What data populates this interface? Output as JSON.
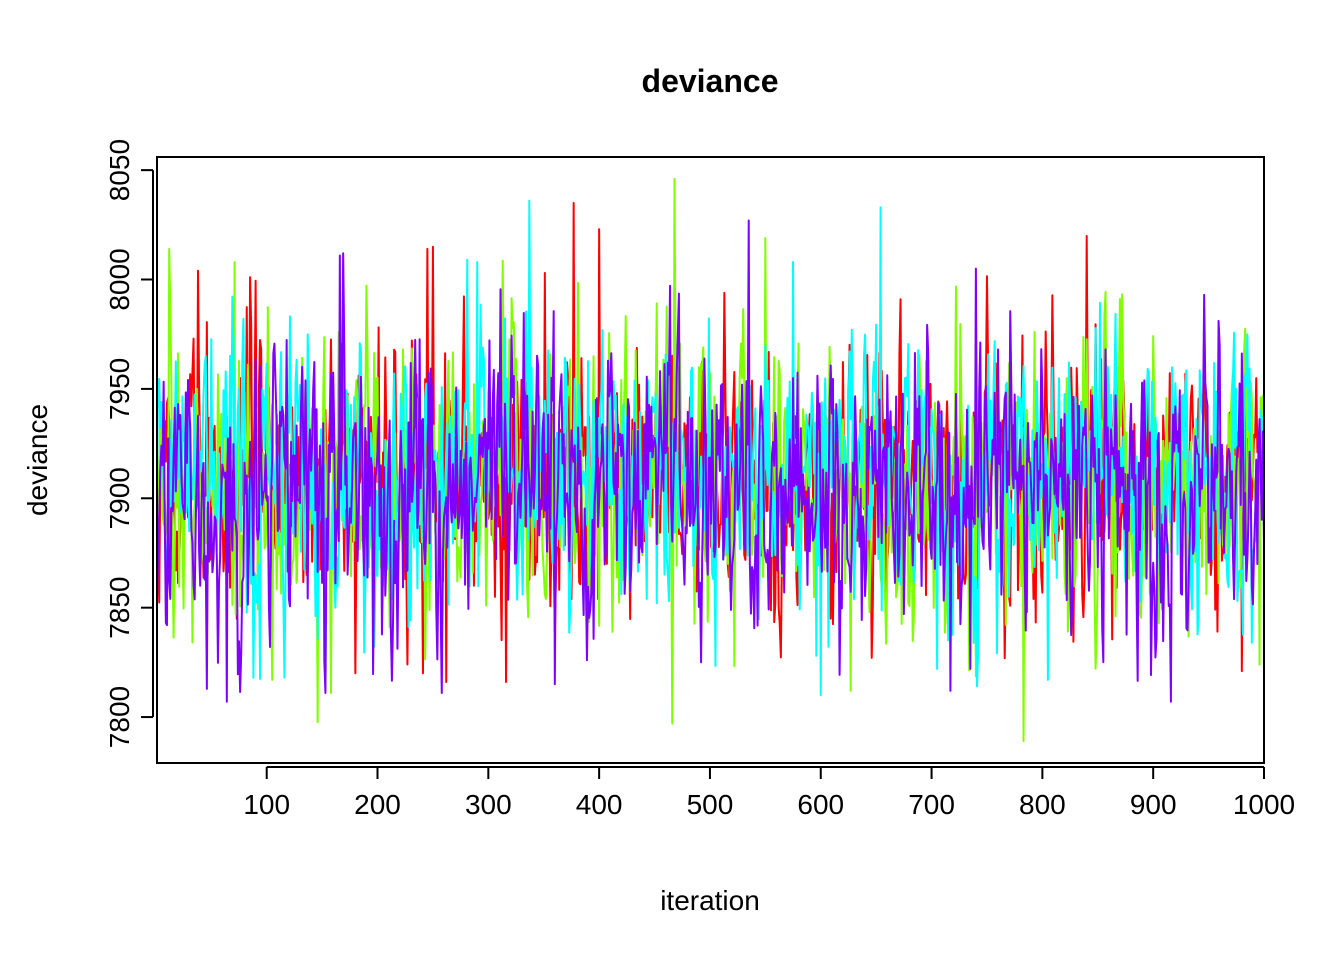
{
  "chart_data": {
    "type": "line",
    "title": "deviance",
    "xlabel": "iteration",
    "ylabel": "deviance",
    "xlim": [
      1,
      1000
    ],
    "ylim": [
      7779,
      8056
    ],
    "xticks": [
      100,
      200,
      300,
      400,
      500,
      600,
      700,
      800,
      900,
      1000
    ],
    "yticks": [
      7800,
      7850,
      7900,
      7950,
      8000,
      8050
    ],
    "grid": false,
    "legend": "none",
    "n_iterations": 1000,
    "series": [
      {
        "color": "#FF0000",
        "summary": {
          "center": 7910,
          "spread": 30,
          "min": 7816,
          "max": 8035
        },
        "notable_points": [
          {
            "x": 377,
            "y": 8035
          },
          {
            "x": 400,
            "y": 8023
          },
          {
            "x": 245,
            "y": 8014
          },
          {
            "x": 250,
            "y": 8015
          },
          {
            "x": 38,
            "y": 8004
          },
          {
            "x": 351,
            "y": 8003
          },
          {
            "x": 180,
            "y": 7820
          },
          {
            "x": 262,
            "y": 7816
          },
          {
            "x": 316,
            "y": 7816
          },
          {
            "x": 980,
            "y": 7821
          }
        ]
      },
      {
        "color": "#80FF00",
        "summary": {
          "center": 7905,
          "spread": 32,
          "min": 7789,
          "max": 8046
        },
        "notable_points": [
          {
            "x": 468,
            "y": 8046
          },
          {
            "x": 550,
            "y": 8019
          },
          {
            "x": 12,
            "y": 8014
          },
          {
            "x": 71,
            "y": 8008
          },
          {
            "x": 783,
            "y": 7789
          },
          {
            "x": 158,
            "y": 7811
          },
          {
            "x": 105,
            "y": 7817
          },
          {
            "x": 627,
            "y": 7812
          },
          {
            "x": 996,
            "y": 7824
          }
        ]
      },
      {
        "color": "#00FFFF",
        "summary": {
          "center": 7912,
          "spread": 30,
          "min": 7810,
          "max": 8036
        },
        "notable_points": [
          {
            "x": 337,
            "y": 8036
          },
          {
            "x": 654,
            "y": 8033
          },
          {
            "x": 281,
            "y": 8009
          },
          {
            "x": 290,
            "y": 8008
          },
          {
            "x": 575,
            "y": 8008
          },
          {
            "x": 600,
            "y": 7810
          },
          {
            "x": 153,
            "y": 7813
          },
          {
            "x": 805,
            "y": 7817
          },
          {
            "x": 705,
            "y": 7822
          }
        ]
      },
      {
        "color": "#8000FF",
        "summary": {
          "center": 7905,
          "spread": 32,
          "min": 7807,
          "max": 8027
        },
        "notable_points": [
          {
            "x": 535,
            "y": 8027
          },
          {
            "x": 166,
            "y": 8011
          },
          {
            "x": 169,
            "y": 8012
          },
          {
            "x": 740,
            "y": 8005
          },
          {
            "x": 64,
            "y": 7807
          },
          {
            "x": 916,
            "y": 7807
          },
          {
            "x": 717,
            "y": 7812
          },
          {
            "x": 360,
            "y": 7815
          },
          {
            "x": 735,
            "y": 7822
          }
        ]
      }
    ]
  }
}
